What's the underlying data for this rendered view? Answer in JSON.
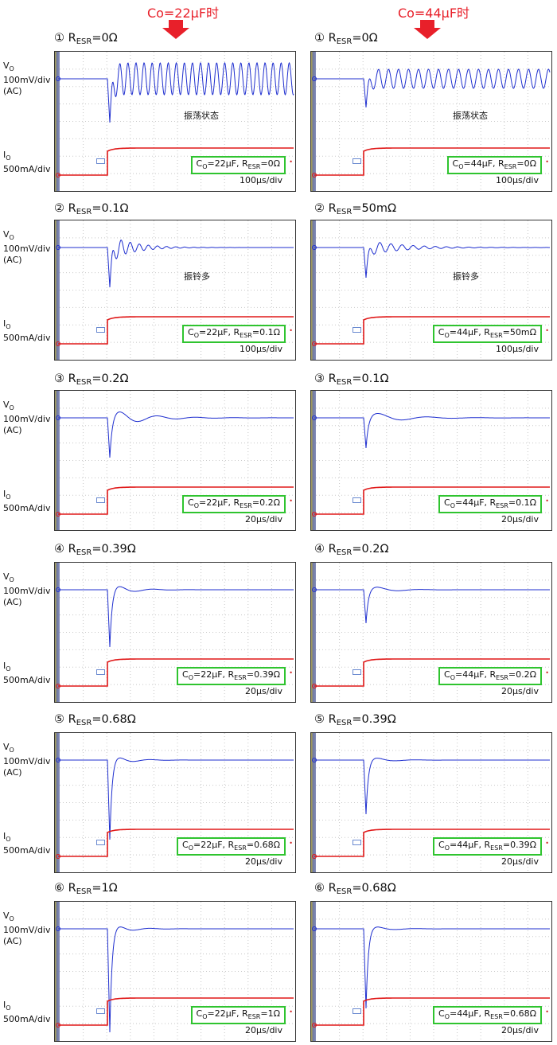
{
  "headers": [
    "Co=22μF时",
    "Co=44μF时"
  ],
  "axis": {
    "vo_line1": "V",
    "vo_sub": "O",
    "vo_line2": "100mV/div",
    "vo_line3": "(AC)",
    "io_line1": "I",
    "io_sub": "O",
    "io_line2": "500mA/div"
  },
  "colors": {
    "vo_trace": "#1f2fcf",
    "io_trace": "#e01818",
    "badge_border": "#2fc42f",
    "header": "#e8202a"
  },
  "chart_data": {
    "type": "line",
    "description_units": "Oscilloscope captures: Vo (AC, 100mV/div) and Io (500mA/div) load-step transient",
    "panels": [
      {
        "id": "L1",
        "num": "①",
        "esr": "0Ω",
        "co": "22μF",
        "badge_esr": "0Ω",
        "tdiv": "100μs/div",
        "note": "振荡状态",
        "freq": 0.62,
        "amp": 20,
        "dip": 55,
        "decay": 0
      },
      {
        "id": "R1",
        "num": "①",
        "esr": "0Ω",
        "co": "44μF",
        "badge_esr": "0Ω",
        "tdiv": "100μs/div",
        "note": "振荡状态",
        "freq": 0.5,
        "amp": 12,
        "dip": 36,
        "decay": 0
      },
      {
        "id": "L2",
        "num": "②",
        "esr": "0.1Ω",
        "co": "22μF",
        "badge_esr": "0.1Ω",
        "tdiv": "100μs/div",
        "note": "振铃多",
        "freq": 0.55,
        "amp": 18,
        "dip": 50,
        "decay": 0.035
      },
      {
        "id": "R2",
        "num": "②",
        "esr": "50mΩ",
        "co": "44μF",
        "badge_esr": "50mΩ",
        "tdiv": "100μs/div",
        "note": "振铃多",
        "freq": 0.45,
        "amp": 10,
        "dip": 38,
        "decay": 0.022
      },
      {
        "id": "L3",
        "num": "③",
        "esr": "0.2Ω",
        "co": "22μF",
        "badge_esr": "0.2Ω",
        "tdiv": "20μs/div",
        "note": "",
        "freq": 0.13,
        "amp": 12,
        "dip": 50,
        "decay": 0.025
      },
      {
        "id": "R3",
        "num": "③",
        "esr": "0.1Ω",
        "co": "44μF",
        "badge_esr": "0.1Ω",
        "tdiv": "20μs/div",
        "note": "",
        "freq": 0.1,
        "amp": 9,
        "dip": 38,
        "decay": 0.025
      },
      {
        "id": "L4",
        "num": "④",
        "esr": "0.39Ω",
        "co": "22μF",
        "badge_esr": "0.39Ω",
        "tdiv": "20μs/div",
        "note": "",
        "freq": 0.14,
        "amp": 10,
        "dip": 72,
        "decay": 0.045
      },
      {
        "id": "R4",
        "num": "④",
        "esr": "0.2Ω",
        "co": "44μF",
        "badge_esr": "0.2Ω",
        "tdiv": "20μs/div",
        "note": "",
        "freq": 0.11,
        "amp": 7,
        "dip": 42,
        "decay": 0.04
      },
      {
        "id": "L5",
        "num": "⑤",
        "esr": "0.68Ω",
        "co": "22μF",
        "badge_esr": "0.68Ω",
        "tdiv": "20μs/div",
        "note": "",
        "freq": 0.15,
        "amp": 9,
        "dip": 100,
        "decay": 0.05
      },
      {
        "id": "R5",
        "num": "⑤",
        "esr": "0.39Ω",
        "co": "44μF",
        "badge_esr": "0.39Ω",
        "tdiv": "20μs/div",
        "note": "",
        "freq": 0.12,
        "amp": 7,
        "dip": 68,
        "decay": 0.05
      },
      {
        "id": "L6",
        "num": "⑥",
        "esr": "1Ω",
        "co": "22μF",
        "badge_esr": "1Ω",
        "tdiv": "20μs/div",
        "note": "",
        "freq": 0.15,
        "amp": 9,
        "dip": 130,
        "decay": 0.05
      },
      {
        "id": "R6",
        "num": "⑥",
        "esr": "0.68Ω",
        "co": "44μF",
        "badge_esr": "0.68Ω",
        "tdiv": "20μs/div",
        "note": "",
        "freq": 0.12,
        "amp": 7,
        "dip": 100,
        "decay": 0.05
      }
    ]
  }
}
